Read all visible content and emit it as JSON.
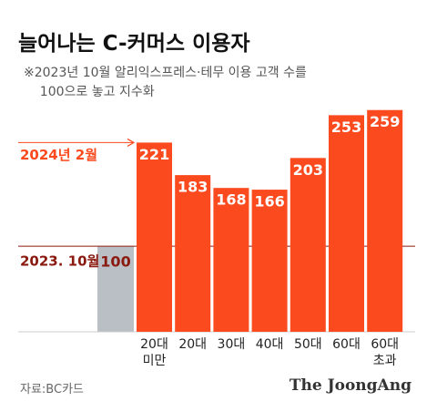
{
  "chart_data": {
    "type": "bar",
    "title": "늘어나는 C-커머스 이용자",
    "subtitle": "※2023년 10월 알리익스프레스·테무 이용 고객 수를\n    100으로 놓고 지수화",
    "categories": [
      "20대\n미만",
      "20대",
      "30대",
      "40대",
      "50대",
      "60대",
      "60대\n초과"
    ],
    "values": [
      221,
      183,
      168,
      166,
      203,
      253,
      259
    ],
    "color": "#fb4a1e",
    "series_label": "2024년 2월",
    "reference": {
      "label": "2023. 10월",
      "value": 100,
      "color": "#b9bfc5"
    },
    "ylim": [
      0,
      280
    ],
    "grid": false,
    "source": "자료:BC카드",
    "brand": "The JoongAng"
  }
}
